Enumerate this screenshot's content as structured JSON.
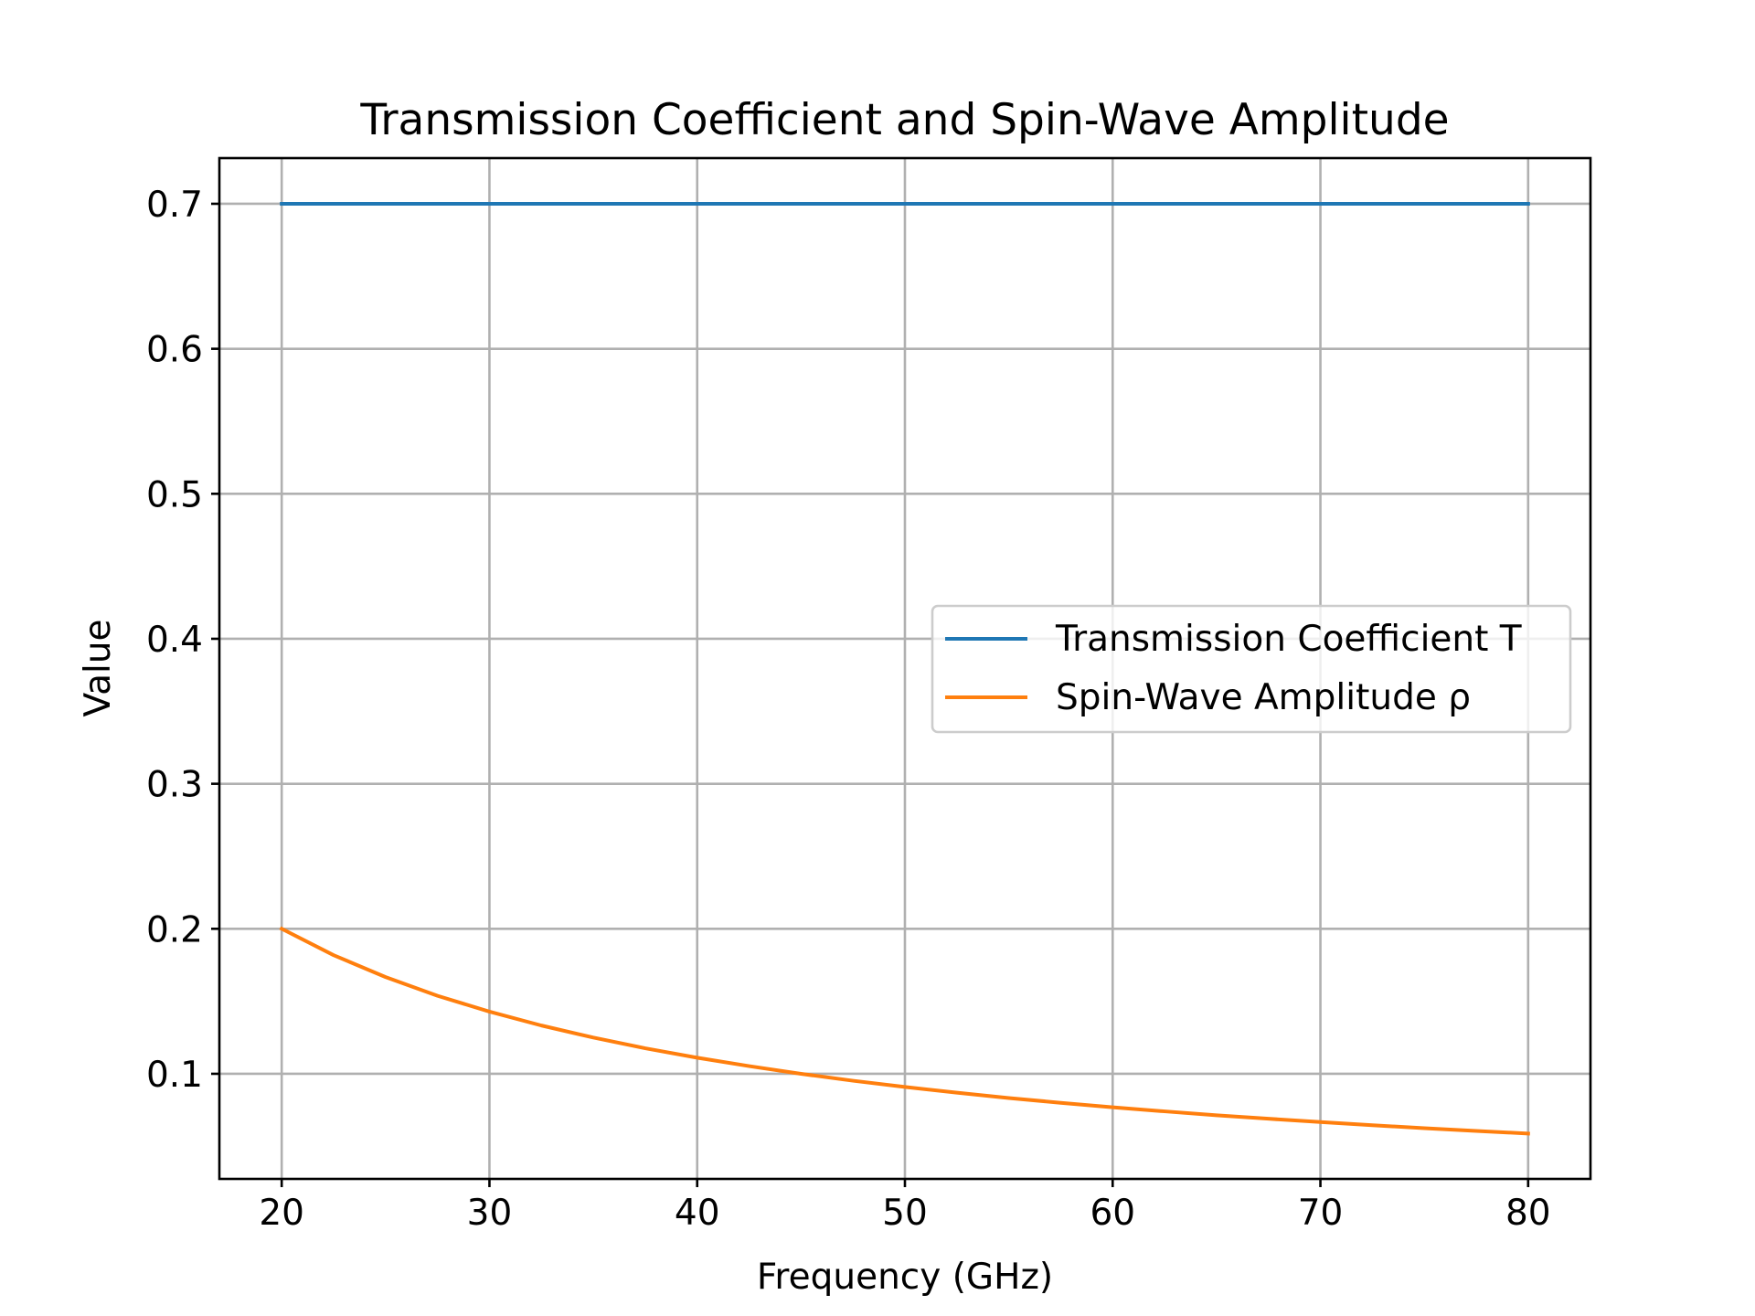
{
  "chart_data": {
    "type": "line",
    "title": "Transmission Coefficient and Spin-Wave Amplitude",
    "xlabel": "Frequency (GHz)",
    "ylabel": "Value",
    "xlim": [
      17,
      83
    ],
    "ylim": [
      0.0275,
      0.7315
    ],
    "xticks": [
      20,
      30,
      40,
      50,
      60,
      70,
      80
    ],
    "yticks": [
      0.1,
      0.2,
      0.3,
      0.4,
      0.5,
      0.6,
      0.7
    ],
    "xtick_labels": [
      "20",
      "30",
      "40",
      "50",
      "60",
      "70",
      "80"
    ],
    "ytick_labels": [
      "0.1",
      "0.2",
      "0.3",
      "0.4",
      "0.5",
      "0.6",
      "0.7"
    ],
    "grid": true,
    "legend_position": "center-right",
    "series": [
      {
        "name": "Transmission Coefficient T",
        "color": "#1f77b4",
        "x": [
          20,
          30,
          40,
          50,
          60,
          70,
          80
        ],
        "y": [
          0.7,
          0.7,
          0.7,
          0.7,
          0.7,
          0.7,
          0.7
        ]
      },
      {
        "name": "Spin-Wave Amplitude ρ",
        "color": "#ff7f0e",
        "x": [
          20,
          22.5,
          25,
          27.5,
          30,
          32.5,
          35,
          37.5,
          40,
          42.5,
          45,
          47.5,
          50,
          52.5,
          55,
          57.5,
          60,
          62.5,
          65,
          67.5,
          70,
          72.5,
          75,
          77.5,
          80
        ],
        "y": [
          0.2,
          0.1818,
          0.1667,
          0.1538,
          0.1429,
          0.1333,
          0.125,
          0.1176,
          0.1111,
          0.1053,
          0.1,
          0.0952,
          0.0909,
          0.087,
          0.0833,
          0.08,
          0.0769,
          0.0741,
          0.0714,
          0.069,
          0.0667,
          0.0645,
          0.0625,
          0.0606,
          0.0588
        ]
      }
    ]
  }
}
